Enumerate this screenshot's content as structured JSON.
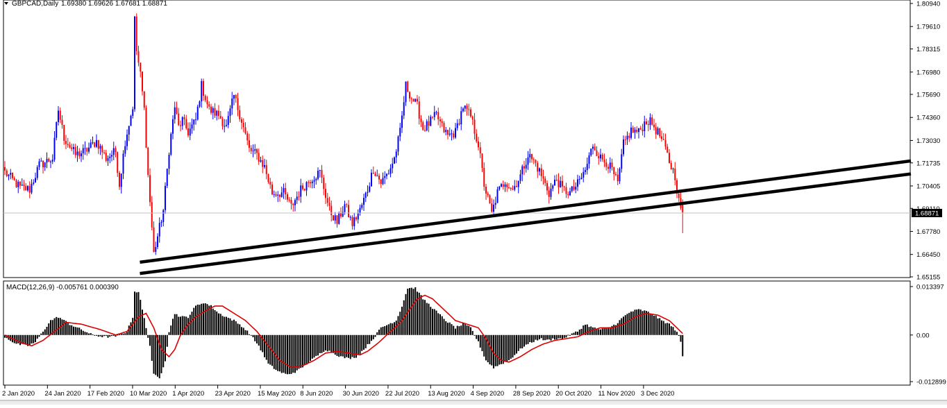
{
  "main_chart": {
    "header": {
      "symbol_timeframe": "GBPCAD,Daily",
      "ohlc": "1.69380 1.69626 1.67681 1.68871"
    },
    "price_axis_ticks": [
      "1.80940",
      "1.79610",
      "1.78315",
      "1.76980",
      "1.75690",
      "1.74360",
      "1.73030",
      "1.71735",
      "1.70405",
      "1.69110",
      "1.67780",
      "1.66450",
      "1.65155"
    ],
    "current_price_label": "1.68871"
  },
  "macd_panel": {
    "header": "MACD(12,26,9) -0.005761 0.000390",
    "axis_ticks": [
      "0.013397",
      "0.00",
      "-0.012899"
    ]
  },
  "time_axis": [
    "2 Jan 2020",
    "24 Jan 2020",
    "17 Feb 2020",
    "10 Mar 2020",
    "1 Apr 2020",
    "23 Apr 2020",
    "15 May 2020",
    "8 Jun 2020",
    "30 Jun 2020",
    "22 Jul 2020",
    "13 Aug 2020",
    "4 Sep 2020",
    "28 Sep 2020",
    "20 Oct 2020",
    "11 Nov 2020",
    "3 Dec 2020"
  ],
  "colors": {
    "bull": "#0000ff",
    "bear": "#ff0000",
    "signal": "#dd0000",
    "histogram": "#000000",
    "trendline": "#000000"
  },
  "chart_data": [
    {
      "type": "candlestick",
      "series": [
        {
          "name": "GBPCAD,Daily",
          "close_anchors": [
            [
              0,
              1.712
            ],
            [
              8,
              1.703
            ],
            [
              13,
              1.702
            ],
            [
              18,
              1.716
            ],
            [
              25,
              1.72
            ],
            [
              28,
              1.748
            ],
            [
              31,
              1.732
            ],
            [
              37,
              1.722
            ],
            [
              42,
              1.724
            ],
            [
              48,
              1.73
            ],
            [
              53,
              1.72
            ],
            [
              58,
              1.724
            ],
            [
              60,
              1.705
            ],
            [
              63,
              1.73
            ],
            [
              67,
              1.75
            ],
            [
              68,
              1.8
            ],
            [
              69,
              1.782
            ],
            [
              71,
              1.768
            ],
            [
              73,
              1.748
            ],
            [
              75,
              1.71
            ],
            [
              78,
              1.665
            ],
            [
              80,
              1.675
            ],
            [
              83,
              1.69
            ],
            [
              86,
              1.725
            ],
            [
              89,
              1.75
            ],
            [
              91,
              1.738
            ],
            [
              93,
              1.742
            ],
            [
              96,
              1.735
            ],
            [
              100,
              1.742
            ],
            [
              103,
              1.762
            ],
            [
              107,
              1.748
            ],
            [
              112,
              1.745
            ],
            [
              116,
              1.738
            ],
            [
              120,
              1.756
            ],
            [
              124,
              1.742
            ],
            [
              128,
              1.725
            ],
            [
              132,
              1.722
            ],
            [
              136,
              1.715
            ],
            [
              140,
              1.7
            ],
            [
              146,
              1.7
            ],
            [
              150,
              1.692
            ],
            [
              155,
              1.702
            ],
            [
              160,
              1.708
            ],
            [
              165,
              1.712
            ],
            [
              170,
              1.69
            ],
            [
              174,
              1.683
            ],
            [
              178,
              1.693
            ],
            [
              182,
              1.682
            ],
            [
              186,
              1.69
            ],
            [
              190,
              1.702
            ],
            [
              193,
              1.714
            ],
            [
              197,
              1.706
            ],
            [
              201,
              1.712
            ],
            [
              204,
              1.72
            ],
            [
              207,
              1.735
            ],
            [
              210,
              1.762
            ],
            [
              213,
              1.755
            ],
            [
              216,
              1.75
            ],
            [
              219,
              1.737
            ],
            [
              222,
              1.74
            ],
            [
              226,
              1.745
            ],
            [
              229,
              1.738
            ],
            [
              232,
              1.733
            ],
            [
              236,
              1.735
            ],
            [
              240,
              1.75
            ],
            [
              244,
              1.744
            ],
            [
              248,
              1.728
            ],
            [
              251,
              1.705
            ],
            [
              255,
              1.688
            ],
            [
              258,
              1.7
            ],
            [
              262,
              1.707
            ],
            [
              266,
              1.702
            ],
            [
              270,
              1.71
            ],
            [
              274,
              1.722
            ],
            [
              278,
              1.717
            ],
            [
              281,
              1.71
            ],
            [
              285,
              1.7
            ],
            [
              289,
              1.708
            ],
            [
              292,
              1.702
            ],
            [
              296,
              1.7
            ],
            [
              300,
              1.705
            ],
            [
              304,
              1.713
            ],
            [
              308,
              1.728
            ],
            [
              312,
              1.72
            ],
            [
              315,
              1.718
            ],
            [
              318,
              1.713
            ],
            [
              321,
              1.705
            ],
            [
              324,
              1.728
            ],
            [
              328,
              1.736
            ],
            [
              332,
              1.735
            ],
            [
              336,
              1.742
            ],
            [
              339,
              1.74
            ],
            [
              343,
              1.733
            ],
            [
              346,
              1.725
            ],
            [
              348,
              1.718
            ],
            [
              351,
              1.71
            ],
            [
              353,
              1.695
            ],
            [
              355,
              1.6887
            ]
          ]
        }
      ],
      "ylim": [
        1.65155,
        1.8094
      ],
      "x_labels": [
        "2 Jan 2020",
        "24 Jan 2020",
        "17 Feb 2020",
        "10 Mar 2020",
        "1 Apr 2020",
        "23 Apr 2020",
        "15 May 2020",
        "8 Jun 2020",
        "30 Jun 2020",
        "22 Jul 2020",
        "13 Aug 2020",
        "4 Sep 2020",
        "28 Sep 2020",
        "20 Oct 2020",
        "11 Nov 2020",
        "3 Dec 2020"
      ],
      "trendlines": [
        {
          "from": [
            "10 Mar 2020",
            1.66
          ],
          "to": [
            "end",
            1.7185
          ]
        },
        {
          "from": [
            "10 Mar 2020",
            1.6535
          ],
          "to": [
            "end",
            1.711
          ]
        }
      ],
      "grid": false
    },
    {
      "type": "bar",
      "title": "MACD(12,26,9) -0.005761 0.000390",
      "ylim": [
        -0.012899,
        0.013397
      ],
      "series": [
        {
          "name": "MACD",
          "anchors": [
            [
              0,
              -0.0005
            ],
            [
              6,
              -0.0025
            ],
            [
              12,
              -0.003
            ],
            [
              16,
              -0.002
            ],
            [
              20,
              0.001
            ],
            [
              24,
              0.004
            ],
            [
              28,
              0.005
            ],
            [
              34,
              0.003
            ],
            [
              40,
              0.0015
            ],
            [
              46,
              0.0
            ],
            [
              52,
              -0.0005
            ],
            [
              57,
              -0.0005
            ],
            [
              60,
              0.0
            ],
            [
              64,
              0.001
            ],
            [
              67,
              0.005
            ],
            [
              68,
              0.012
            ],
            [
              70,
              0.012
            ],
            [
              74,
              0.002
            ],
            [
              76,
              -0.003
            ],
            [
              78,
              -0.011
            ],
            [
              81,
              -0.012
            ],
            [
              84,
              -0.007
            ],
            [
              86,
              0.001
            ],
            [
              89,
              0.006
            ],
            [
              92,
              0.005
            ],
            [
              96,
              0.005
            ],
            [
              100,
              0.008
            ],
            [
              104,
              0.009
            ],
            [
              108,
              0.008
            ],
            [
              112,
              0.006
            ],
            [
              116,
              0.005
            ],
            [
              120,
              0.004
            ],
            [
              124,
              0.0025
            ],
            [
              128,
              0.0005
            ],
            [
              133,
              -0.003
            ],
            [
              138,
              -0.008
            ],
            [
              143,
              -0.01
            ],
            [
              148,
              -0.011
            ],
            [
              153,
              -0.01
            ],
            [
              158,
              -0.008
            ],
            [
              163,
              -0.006
            ],
            [
              168,
              -0.004
            ],
            [
              172,
              -0.005
            ],
            [
              176,
              -0.006
            ],
            [
              180,
              -0.0065
            ],
            [
              184,
              -0.006
            ],
            [
              188,
              -0.004
            ],
            [
              193,
              -0.001
            ],
            [
              197,
              0.002
            ],
            [
              201,
              0.003
            ],
            [
              205,
              0.004
            ],
            [
              208,
              0.008
            ],
            [
              211,
              0.013
            ],
            [
              215,
              0.013
            ],
            [
              219,
              0.01
            ],
            [
              223,
              0.008
            ],
            [
              227,
              0.006
            ],
            [
              231,
              0.004
            ],
            [
              236,
              0.002
            ],
            [
              240,
              0.003
            ],
            [
              244,
              0.002
            ],
            [
              248,
              -0.002
            ],
            [
              252,
              -0.007
            ],
            [
              256,
              -0.009
            ],
            [
              260,
              -0.008
            ],
            [
              264,
              -0.007
            ],
            [
              268,
              -0.005
            ],
            [
              272,
              -0.003
            ],
            [
              276,
              -0.002
            ],
            [
              280,
              -0.001
            ],
            [
              284,
              -0.0015
            ],
            [
              288,
              -0.001
            ],
            [
              292,
              -0.001
            ],
            [
              296,
              0.0
            ],
            [
              300,
              0.001
            ],
            [
              304,
              0.003
            ],
            [
              308,
              0.002
            ],
            [
              312,
              0.0015
            ],
            [
              316,
              0.002
            ],
            [
              320,
              0.003
            ],
            [
              324,
              0.005
            ],
            [
              328,
              0.0065
            ],
            [
              332,
              0.007
            ],
            [
              336,
              0.0065
            ],
            [
              340,
              0.0055
            ],
            [
              344,
              0.004
            ],
            [
              348,
              0.003
            ],
            [
              352,
              0.001
            ],
            [
              354,
              -0.002
            ],
            [
              355,
              -0.0058
            ]
          ]
        },
        {
          "name": "Signal",
          "anchors": [
            [
              0,
              0.0
            ],
            [
              8,
              -0.002
            ],
            [
              14,
              -0.003
            ],
            [
              20,
              -0.0015
            ],
            [
              26,
              0.001
            ],
            [
              32,
              0.0035
            ],
            [
              40,
              0.003
            ],
            [
              50,
              0.0015
            ],
            [
              58,
              0.0
            ],
            [
              64,
              0.001
            ],
            [
              70,
              0.005
            ],
            [
              74,
              0.006
            ],
            [
              78,
              0.002
            ],
            [
              82,
              -0.004
            ],
            [
              86,
              -0.006
            ],
            [
              89,
              -0.004
            ],
            [
              92,
              0.0
            ],
            [
              96,
              0.003
            ],
            [
              100,
              0.005
            ],
            [
              106,
              0.007
            ],
            [
              110,
              0.008
            ],
            [
              114,
              0.008
            ],
            [
              120,
              0.006
            ],
            [
              126,
              0.004
            ],
            [
              132,
              0.001
            ],
            [
              138,
              -0.003
            ],
            [
              144,
              -0.007
            ],
            [
              150,
              -0.009
            ],
            [
              156,
              -0.0085
            ],
            [
              162,
              -0.007
            ],
            [
              168,
              -0.005
            ],
            [
              174,
              -0.0045
            ],
            [
              180,
              -0.005
            ],
            [
              186,
              -0.0055
            ],
            [
              190,
              -0.0045
            ],
            [
              196,
              -0.002
            ],
            [
              202,
              0.001
            ],
            [
              208,
              0.004
            ],
            [
              212,
              0.007
            ],
            [
              216,
              0.01
            ],
            [
              220,
              0.011
            ],
            [
              224,
              0.01
            ],
            [
              230,
              0.007
            ],
            [
              236,
              0.004
            ],
            [
              242,
              0.003
            ],
            [
              248,
              0.002
            ],
            [
              252,
              -0.001
            ],
            [
              256,
              -0.005
            ],
            [
              260,
              -0.007
            ],
            [
              264,
              -0.0075
            ],
            [
              270,
              -0.006
            ],
            [
              276,
              -0.004
            ],
            [
              282,
              -0.0025
            ],
            [
              288,
              -0.0015
            ],
            [
              294,
              -0.001
            ],
            [
              300,
              -0.0005
            ],
            [
              306,
              0.001
            ],
            [
              312,
              0.002
            ],
            [
              318,
              0.002
            ],
            [
              324,
              0.003
            ],
            [
              330,
              0.005
            ],
            [
              336,
              0.006
            ],
            [
              342,
              0.0055
            ],
            [
              348,
              0.004
            ],
            [
              352,
              0.002
            ],
            [
              355,
              0.0004
            ]
          ]
        }
      ]
    }
  ]
}
